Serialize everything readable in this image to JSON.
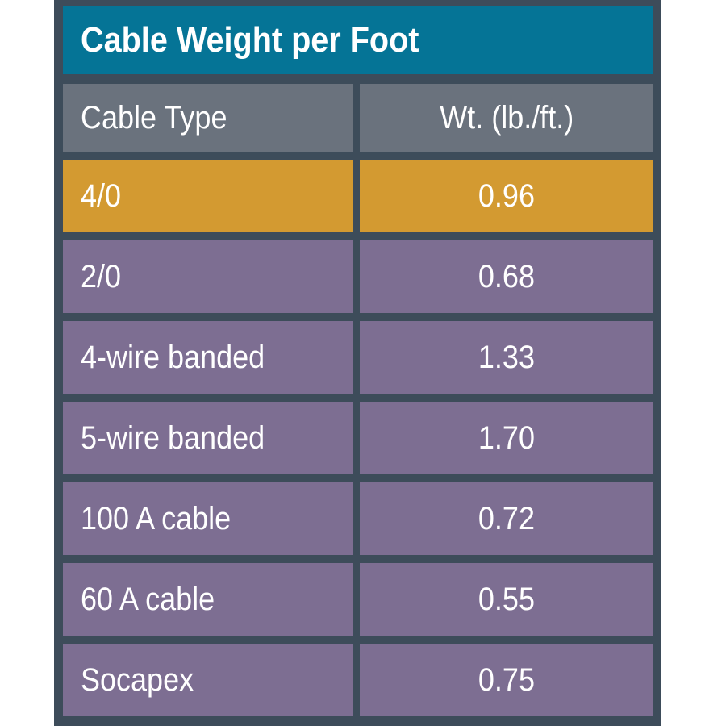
{
  "table": {
    "title": "Cable Weight per Foot",
    "columns": [
      "Cable Type",
      "Wt. (lb./ft.)"
    ],
    "rows": [
      {
        "type": "4/0",
        "weight": "0.96",
        "highlighted": true
      },
      {
        "type": "2/0",
        "weight": "0.68",
        "highlighted": false
      },
      {
        "type": "4-wire banded",
        "weight": "1.33",
        "highlighted": false
      },
      {
        "type": "5-wire banded",
        "weight": "1.70",
        "highlighted": false
      },
      {
        "type": "100 A cable",
        "weight": "0.72",
        "highlighted": false
      },
      {
        "type": "60 A cable",
        "weight": "0.55",
        "highlighted": false
      },
      {
        "type": "Socapex",
        "weight": "0.75",
        "highlighted": false
      }
    ],
    "colors": {
      "title_bg": "#057496",
      "header_bg": "#6a727d",
      "row_bg": "#7d6e92",
      "highlight_bg": "#d39a31",
      "border": "#3d4c5a",
      "text": "#ffffff"
    }
  },
  "chart_data": {
    "type": "table",
    "title": "Cable Weight per Foot",
    "columns": [
      "Cable Type",
      "Wt. (lb./ft.)"
    ],
    "rows": [
      [
        "4/0",
        0.96
      ],
      [
        "2/0",
        0.68
      ],
      [
        "4-wire banded",
        1.33
      ],
      [
        "5-wire banded",
        1.7
      ],
      [
        "100 A cable",
        0.72
      ],
      [
        "60 A cable",
        0.55
      ],
      [
        "Socapex",
        0.75
      ]
    ],
    "highlighted_row": "4/0"
  }
}
